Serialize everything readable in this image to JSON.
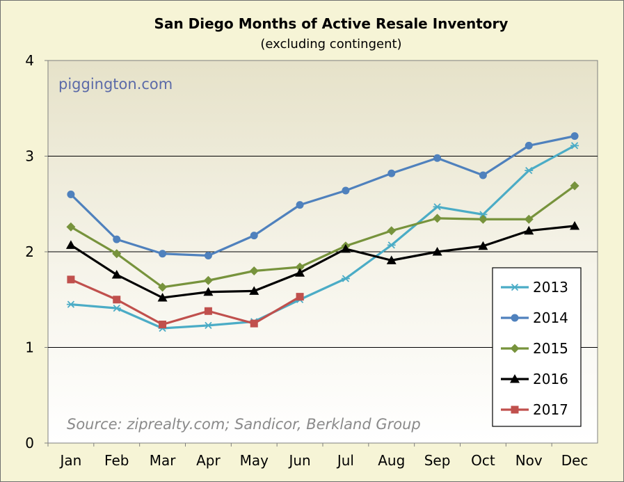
{
  "chart_data": {
    "type": "line",
    "title": "San Diego Months of Active Resale Inventory",
    "subtitle": "(excluding contingent)",
    "watermark": "piggington.com",
    "source_note": "Source: ziprealty.com; Sandicor, Berkland Group",
    "categories": [
      "Jan",
      "Feb",
      "Mar",
      "Apr",
      "May",
      "Jun",
      "Jul",
      "Aug",
      "Sep",
      "Oct",
      "Nov",
      "Dec"
    ],
    "ylim": [
      0,
      4
    ],
    "yticks": [
      "0",
      "1",
      "2",
      "3",
      "4"
    ],
    "grid": true,
    "legend_position": "bottom-right",
    "series": [
      {
        "name": "2013",
        "color": "#4bacc6",
        "marker": "asterisk",
        "values": [
          1.45,
          1.41,
          1.2,
          1.23,
          1.27,
          1.5,
          1.72,
          2.07,
          2.47,
          2.39,
          2.85,
          3.11
        ]
      },
      {
        "name": "2014",
        "color": "#4f81bd",
        "marker": "circle",
        "values": [
          2.6,
          2.13,
          1.98,
          1.96,
          2.17,
          2.49,
          2.64,
          2.82,
          2.98,
          2.8,
          3.11,
          3.21
        ]
      },
      {
        "name": "2015",
        "color": "#77933c",
        "marker": "diamond",
        "values": [
          2.26,
          1.98,
          1.63,
          1.7,
          1.8,
          1.84,
          2.06,
          2.22,
          2.35,
          2.34,
          2.34,
          2.69
        ]
      },
      {
        "name": "2016",
        "color": "#000000",
        "marker": "triangle",
        "values": [
          2.07,
          1.76,
          1.52,
          1.58,
          1.59,
          1.78,
          2.03,
          1.91,
          2.0,
          2.06,
          2.22,
          2.27
        ]
      },
      {
        "name": "2017",
        "color": "#c0504d",
        "marker": "square",
        "values": [
          1.71,
          1.5,
          1.24,
          1.38,
          1.25,
          1.53,
          null,
          null,
          null,
          null,
          null,
          null
        ]
      }
    ]
  }
}
